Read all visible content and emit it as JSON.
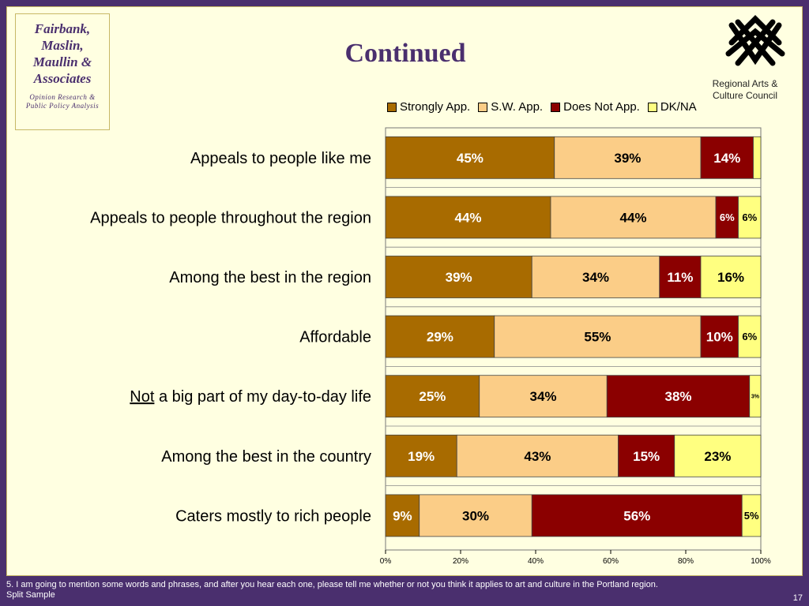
{
  "firm": {
    "name_lines": [
      "Fairbank,",
      "Maslin,",
      "Maullin &",
      "Associates"
    ],
    "tagline_lines": [
      "Opinion Research &",
      "Public Policy Analysis"
    ]
  },
  "title": "Continued",
  "logo": {
    "lines": [
      "Regional Arts &",
      "Culture Council"
    ]
  },
  "colors": {
    "strongly": "#a86b00",
    "sw": "#fbcd87",
    "not": "#8b0000",
    "dk": "#ffff80"
  },
  "chart_data": {
    "type": "bar",
    "orientation": "horizontal",
    "stacked": true,
    "categories": [
      "Appeals to people like me",
      "Appeals to people throughout the region",
      "Among the best in the region",
      "Affordable",
      "Not a big part of my day-to-day life",
      "Among the best in the country",
      "Caters mostly to rich people"
    ],
    "category_underline_prefix": [
      "",
      "",
      "",
      "",
      "Not",
      "",
      ""
    ],
    "series": [
      {
        "name": "Strongly App.",
        "values": [
          45,
          44,
          39,
          29,
          25,
          19,
          9
        ],
        "labels": [
          "45%",
          "44%",
          "39%",
          "29%",
          "25%",
          "19%",
          "9%"
        ]
      },
      {
        "name": "S.W. App.",
        "values": [
          39,
          44,
          34,
          55,
          34,
          43,
          30
        ],
        "labels": [
          "39%",
          "44%",
          "34%",
          "55%",
          "34%",
          "43%",
          "30%"
        ]
      },
      {
        "name": "Does Not App.",
        "values": [
          14,
          6,
          11,
          10,
          38,
          15,
          56
        ],
        "labels": [
          "14%",
          "6%",
          "11%",
          "10%",
          "38%",
          "15%",
          "56%"
        ]
      },
      {
        "name": "DK/NA",
        "values": [
          2,
          6,
          16,
          6,
          3,
          23,
          5
        ],
        "labels": [
          "",
          "6%",
          "16%",
          "6%",
          "3%",
          "23%",
          "5%"
        ]
      }
    ],
    "xticks": [
      "0%",
      "20%",
      "40%",
      "60%",
      "80%",
      "100%"
    ],
    "xlim": [
      0,
      100
    ],
    "legend_position": "top"
  },
  "footer": {
    "question": "5. I am going to mention some words and phrases, and after you hear each one, please tell me whether or not you think it applies to art and culture in the Portland region.",
    "note": "Split Sample",
    "page": "17"
  }
}
